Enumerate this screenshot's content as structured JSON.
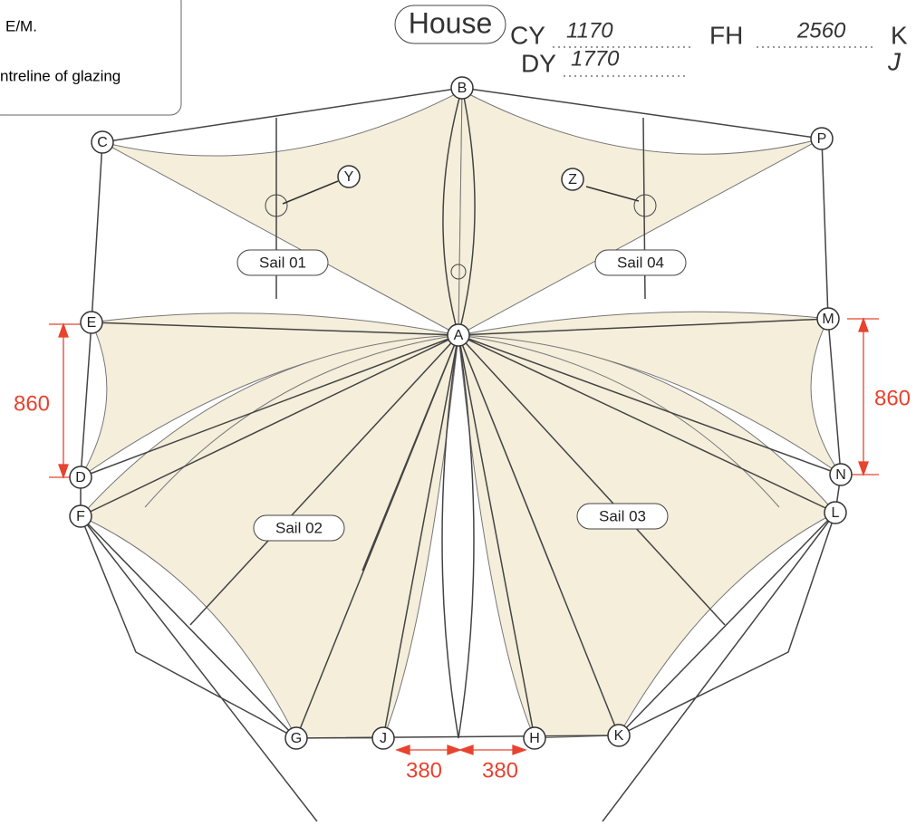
{
  "header": {
    "notes": [
      "E/M.",
      "ntreline of glazing"
    ],
    "house": "House",
    "fields": [
      {
        "label": "CY",
        "value": "1170"
      },
      {
        "label": "FH",
        "value": "2560"
      },
      {
        "label": "K",
        "value": null
      },
      {
        "label": "DY",
        "value": "1770"
      },
      {
        "label": "J",
        "value": null
      }
    ]
  },
  "nodes": [
    {
      "label": "A"
    },
    {
      "label": "B"
    },
    {
      "label": "C"
    },
    {
      "label": "P"
    },
    {
      "label": "E"
    },
    {
      "label": "M"
    },
    {
      "label": "D"
    },
    {
      "label": "N"
    },
    {
      "label": "F"
    },
    {
      "label": "L"
    },
    {
      "label": "G"
    },
    {
      "label": "J"
    },
    {
      "label": "H"
    },
    {
      "label": "K"
    },
    {
      "label": "Y"
    },
    {
      "label": "Z"
    }
  ],
  "sails": [
    {
      "label": "Sail 01"
    },
    {
      "label": "Sail 02"
    },
    {
      "label": "Sail 03"
    },
    {
      "label": "Sail 04"
    }
  ],
  "dimensions": [
    {
      "label": "860"
    },
    {
      "label": "860"
    },
    {
      "label": "380"
    },
    {
      "label": "380"
    }
  ]
}
